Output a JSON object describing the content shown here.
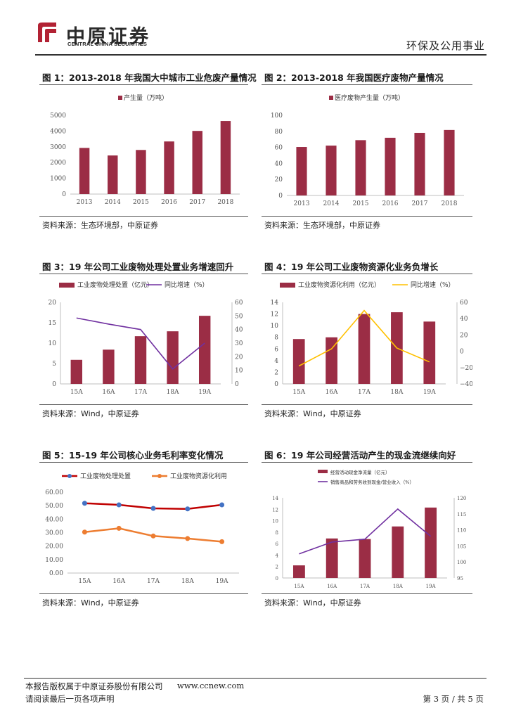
{
  "header": {
    "logo_cn": "中原证券",
    "logo_en": "CENTRAL CHINA SECURITIES",
    "sector": "环保及公用事业"
  },
  "figures": {
    "f1": {
      "title": "图 1：2013-2018 年我国大中城市工业危废产量情况",
      "source": "资料来源：生态环境部，中原证券"
    },
    "f2": {
      "title": "图 2：2013-2018 年我国医疗废物产量情况",
      "source": "资料来源：生态环境部，中原证券"
    },
    "f3": {
      "title": "图 3：19 年公司工业废物处理处置业务增速回升",
      "source": "资料来源：Wind，中原证券"
    },
    "f4": {
      "title": "图 4：19 年公司工业废物资源化业务负增长",
      "source": "资料来源：Wind，中原证券"
    },
    "f5": {
      "title": "图 5：15-19 年公司核心业务毛利率变化情况",
      "source": "资料来源：Wind，中原证券"
    },
    "f6": {
      "title": "图 6：19 年公司经营活动产生的现金流继续向好",
      "source": "资料来源：Wind，中原证券"
    }
  },
  "footer": {
    "copyright": "本报告版权属于中原证券股份有限公司",
    "website": "www.ccnew.com",
    "disclaimer": "请阅读最后一页各项声明",
    "page": "第 3 页 / 共 5 页"
  },
  "colors": {
    "bar": "#9b2d45",
    "line_purple": "#7030a0",
    "line_yellow": "#ffc000",
    "line_red": "#c00000",
    "line_orange": "#ed7d31",
    "blue_marker": "#4472c4"
  },
  "chart_data": [
    {
      "id": "f1",
      "type": "bar",
      "categories": [
        "2013",
        "2014",
        "2015",
        "2016",
        "2017",
        "2018"
      ],
      "series": [
        {
          "name": "产生量（万吨）",
          "values": [
            2930,
            2450,
            2800,
            3340,
            4010,
            4640
          ]
        }
      ],
      "yticks": [
        "0",
        "1000",
        "2000",
        "3000",
        "4000",
        "5000"
      ],
      "ylim": [
        0,
        5000
      ]
    },
    {
      "id": "f2",
      "type": "bar",
      "categories": [
        "2013",
        "2014",
        "2015",
        "2016",
        "2017",
        "2018"
      ],
      "series": [
        {
          "name": "医疗废物产生量（万吨）",
          "values": [
            60.5,
            62.2,
            69.0,
            72.0,
            78.1,
            81.7
          ]
        }
      ],
      "yticks": [
        "0",
        "20",
        "40",
        "60",
        "80",
        "100"
      ],
      "ylim": [
        0,
        100
      ]
    },
    {
      "id": "f3",
      "type": "bar+line",
      "categories": [
        "15A",
        "16A",
        "17A",
        "18A",
        "19A"
      ],
      "series": [
        {
          "name": "工业废物处理处置（亿元）",
          "kind": "bar",
          "axis": "left",
          "values": [
            5.9,
            8.4,
            11.7,
            12.9,
            16.7
          ]
        },
        {
          "name": "同比增速（%）",
          "kind": "line",
          "axis": "right",
          "values": [
            48.5,
            44,
            40,
            11,
            30
          ]
        }
      ],
      "yticks": [
        "0",
        "5",
        "10",
        "15",
        "20"
      ],
      "ylim": [
        0,
        20
      ],
      "y2ticks": [
        "0",
        "10",
        "20",
        "30",
        "40",
        "50",
        "60"
      ],
      "y2lim": [
        0,
        60
      ]
    },
    {
      "id": "f4",
      "type": "bar+line",
      "categories": [
        "15A",
        "16A",
        "17A",
        "18A",
        "19A"
      ],
      "series": [
        {
          "name": "工业废物资源化利用（亿元）",
          "kind": "bar",
          "axis": "left",
          "values": [
            7.7,
            8.0,
            12.0,
            12.3,
            10.7
          ]
        },
        {
          "name": "同比增速（%）",
          "kind": "line",
          "axis": "right",
          "values": [
            -18,
            3,
            50,
            4,
            -13
          ]
        }
      ],
      "yticks": [
        "0",
        "2",
        "4",
        "6",
        "8",
        "10",
        "12",
        "14"
      ],
      "ylim": [
        0,
        14
      ],
      "y2ticks": [
        "−40",
        "−20",
        "0",
        "20",
        "40",
        "60"
      ],
      "y2lim": [
        -40,
        60
      ]
    },
    {
      "id": "f5",
      "type": "line",
      "categories": [
        "15A",
        "16A",
        "17A",
        "18A",
        "19A"
      ],
      "series": [
        {
          "name": "工业废物处理处置",
          "values": [
            51.8,
            50.6,
            48.0,
            47.6,
            50.6
          ]
        },
        {
          "name": "工业废物资源化利用",
          "values": [
            30.4,
            33.2,
            27.5,
            25.6,
            23.3
          ]
        }
      ],
      "yticks": [
        "0.00",
        "10.00",
        "20.00",
        "30.00",
        "40.00",
        "50.00",
        "60.00"
      ],
      "ylim": [
        0,
        60
      ]
    },
    {
      "id": "f6",
      "type": "bar+line",
      "categories": [
        "15A",
        "16A",
        "17A",
        "18A",
        "19A"
      ],
      "series": [
        {
          "name": "经营活动现金净流量（亿元）",
          "kind": "bar",
          "axis": "left",
          "values": [
            2.2,
            6.9,
            6.8,
            9.0,
            12.3
          ]
        },
        {
          "name": "销售商品和劳务收到现金/营业收入（%）",
          "kind": "line",
          "axis": "right",
          "values": [
            102.5,
            106.2,
            107.1,
            116.5,
            108.0
          ]
        }
      ],
      "yticks": [
        "0",
        "2",
        "4",
        "6",
        "8",
        "10",
        "12",
        "14"
      ],
      "ylim": [
        0,
        14
      ],
      "y2ticks": [
        "95",
        "100",
        "105",
        "110",
        "115",
        "120"
      ],
      "y2lim": [
        95,
        120
      ]
    }
  ]
}
